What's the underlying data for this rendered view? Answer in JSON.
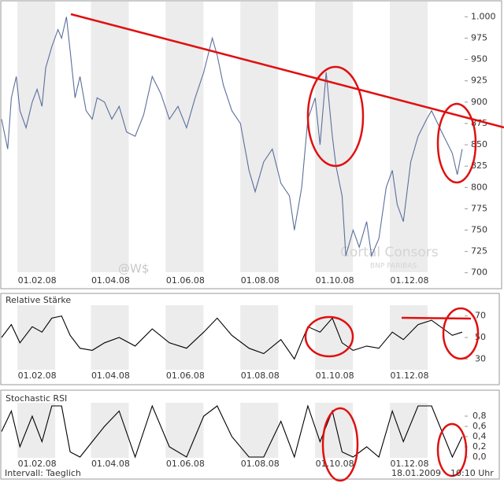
{
  "chart_data": [
    {
      "type": "line",
      "color": "#5b6f9c",
      "x": [
        "03.01.08",
        "08.01.08",
        "11.01.08",
        "15.01.08",
        "18.01.08",
        "23.01.08",
        "28.01.08",
        "01.02.08",
        "05.02.08",
        "08.02.08",
        "13.02.08",
        "18.02.08",
        "21.02.08",
        "25.02.08",
        "28.02.08",
        "03.03.08",
        "07.03.08",
        "12.03.08",
        "17.03.08",
        "21.03.08",
        "27.03.08",
        "02.04.08",
        "08.04.08",
        "14.04.08",
        "21.04.08",
        "28.04.08",
        "05.05.08",
        "12.05.08",
        "19.05.08",
        "26.05.08",
        "02.06.08",
        "09.06.08",
        "16.06.08",
        "23.06.08",
        "27.06.08",
        "02.07.08",
        "09.07.08",
        "16.07.08",
        "23.07.08",
        "28.07.08",
        "04.08.08",
        "11.08.08",
        "18.08.08",
        "25.08.08",
        "29.08.08",
        "04.09.08",
        "09.09.08",
        "15.09.08",
        "19.09.08",
        "24.09.08",
        "29.09.08",
        "02.10.08",
        "07.10.08",
        "10.10.08",
        "16.10.08",
        "21.10.08",
        "27.10.08",
        "31.10.08",
        "06.11.08",
        "12.11.08",
        "17.11.08",
        "21.11.08",
        "26.11.08",
        "02.12.08",
        "08.12.08",
        "15.12.08",
        "19.12.08",
        "29.12.08",
        "05.01.09",
        "09.01.09",
        "13.01.09"
      ],
      "values": [
        880,
        845,
        905,
        930,
        890,
        870,
        900,
        915,
        895,
        940,
        965,
        985,
        975,
        1000,
        960,
        905,
        930,
        890,
        880,
        905,
        900,
        880,
        895,
        865,
        860,
        885,
        930,
        910,
        880,
        895,
        870,
        905,
        935,
        975,
        955,
        920,
        890,
        875,
        820,
        795,
        830,
        845,
        805,
        790,
        750,
        800,
        880,
        905,
        850,
        935,
        860,
        825,
        790,
        720,
        750,
        730,
        760,
        720,
        740,
        800,
        820,
        780,
        760,
        830,
        860,
        880,
        890,
        860,
        840,
        815,
        845
      ],
      "xlim": [
        "03.01.08",
        "15.01.09"
      ],
      "xticks": [
        "01.02.08",
        "01.04.08",
        "01.06.08",
        "01.08.08",
        "01.10.08",
        "01.12.08"
      ],
      "ylim": [
        697,
        1016
      ],
      "yticks": [
        700,
        725,
        750,
        775,
        800,
        825,
        850,
        875,
        900,
        925,
        950,
        975,
        {
          "value": 1000,
          "label": "1.000"
        }
      ]
    },
    {
      "type": "line",
      "title": "Relative Stärke",
      "color": "#000000",
      "x": [
        "03.01.08",
        "11.01.08",
        "18.01.08",
        "28.01.08",
        "05.02.08",
        "13.02.08",
        "21.02.08",
        "28.02.08",
        "07.03.08",
        "17.03.08",
        "27.03.08",
        "08.04.08",
        "21.04.08",
        "05.05.08",
        "19.05.08",
        "02.06.08",
        "16.06.08",
        "27.06.08",
        "09.07.08",
        "23.07.08",
        "04.08.08",
        "18.08.08",
        "29.08.08",
        "09.09.08",
        "19.09.08",
        "29.09.08",
        "07.10.08",
        "16.10.08",
        "27.10.08",
        "06.11.08",
        "17.11.08",
        "26.11.08",
        "08.12.08",
        "19.12.08",
        "05.01.09",
        "13.01.09"
      ],
      "values": [
        50,
        62,
        45,
        60,
        55,
        68,
        70,
        52,
        40,
        38,
        45,
        50,
        42,
        58,
        45,
        40,
        55,
        68,
        52,
        40,
        35,
        48,
        30,
        60,
        55,
        68,
        45,
        38,
        42,
        40,
        55,
        48,
        62,
        66,
        52,
        55
      ],
      "xlim": [
        "03.01.08",
        "15.01.09"
      ],
      "xticks": [
        "01.02.08",
        "01.04.08",
        "01.06.08",
        "01.08.08",
        "01.10.08",
        "01.12.08"
      ],
      "ylim": [
        20,
        80
      ],
      "yticks": [
        30,
        50,
        70
      ]
    },
    {
      "type": "line",
      "title": "Stochastic RSI",
      "color": "#000000",
      "x": [
        "03.01.08",
        "11.01.08",
        "18.01.08",
        "28.01.08",
        "05.02.08",
        "13.02.08",
        "21.02.08",
        "28.02.08",
        "07.03.08",
        "17.03.08",
        "27.03.08",
        "08.04.08",
        "21.04.08",
        "05.05.08",
        "19.05.08",
        "02.06.08",
        "16.06.08",
        "27.06.08",
        "09.07.08",
        "23.07.08",
        "04.08.08",
        "18.08.08",
        "29.08.08",
        "09.09.08",
        "19.09.08",
        "29.09.08",
        "07.10.08",
        "16.10.08",
        "27.10.08",
        "06.11.08",
        "17.11.08",
        "26.11.08",
        "08.12.08",
        "19.12.08",
        "05.01.09",
        "13.01.09"
      ],
      "values": [
        0.5,
        0.9,
        0.2,
        0.8,
        0.3,
        1,
        1,
        0.1,
        0,
        0.3,
        0.6,
        0.9,
        0,
        1,
        0.2,
        0,
        0.8,
        1,
        0.4,
        0,
        0,
        0.7,
        0,
        1,
        0.3,
        0.9,
        0.1,
        0,
        0.2,
        0,
        0.9,
        0.3,
        1,
        1,
        0,
        0.4
      ],
      "xlim": [
        "03.01.08",
        "15.01.09"
      ],
      "xticks": [
        "01.02.08",
        "01.04.08",
        "01.06.08",
        "01.08.08",
        "01.10.08",
        "01.12.08"
      ],
      "ylim": [
        0,
        1
      ],
      "yticks": [
        {
          "value": 0,
          "label": "0,0"
        },
        {
          "value": 0.2,
          "label": "0,2"
        },
        {
          "value": 0.4,
          "label": "0,4"
        },
        {
          "value": 0.6,
          "label": "0,6"
        },
        {
          "value": 0.8,
          "label": "0,8"
        }
      ]
    }
  ],
  "watermark": "@W$",
  "logo": {
    "name": "Cortal Consors",
    "subtitle": "BNP PARIBAS"
  },
  "footer": {
    "interval": "Intervall: Taeglich",
    "date": "18.01.2009",
    "time": "10:10 Uhr"
  }
}
